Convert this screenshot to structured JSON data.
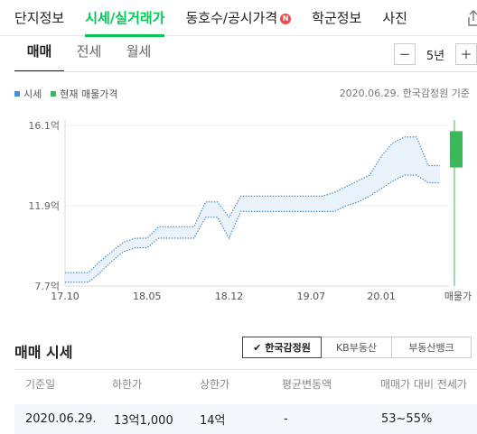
{
  "top_tabs": [
    "단지정보",
    "시세/실거래가",
    "동호수/공시가격",
    "학군정보",
    "사진"
  ],
  "top_tabs_badge": "N",
  "sub_tabs": [
    "매매",
    "전세",
    "월세"
  ],
  "period": {
    "value": "5년",
    "minus": "−",
    "plus": "+"
  },
  "legend": {
    "price": "시세",
    "current": "현재 매물가격"
  },
  "colors": {
    "accent": "#03c75a",
    "price_band": "#4a8fd8",
    "current_listing": "#3cb85a"
  },
  "source_note": "2020.06.29. 한국감정원 기준",
  "chart_data": {
    "type": "area",
    "x_ticks": [
      "17.10",
      "18.05",
      "18.12",
      "19.07",
      "20.01",
      "매물가"
    ],
    "y_ticks": [
      "16.1억",
      "11.9억",
      "7.7억"
    ],
    "y_tick_values": [
      16.1,
      11.9,
      7.7
    ],
    "ylim": [
      7.7,
      16.1
    ],
    "x": [
      "17.10",
      "17.11",
      "17.12",
      "18.01",
      "18.02",
      "18.03",
      "18.04",
      "18.05",
      "18.06",
      "18.07",
      "18.08",
      "18.09",
      "18.10",
      "18.11",
      "18.12",
      "19.01",
      "19.02",
      "19.03",
      "19.04",
      "19.05",
      "19.06",
      "19.07",
      "19.08",
      "19.09",
      "19.10",
      "19.11",
      "19.12",
      "20.01",
      "20.02",
      "20.03",
      "20.04",
      "20.05",
      "20.06"
    ],
    "series": [
      {
        "name": "하한가",
        "values": [
          7.9,
          7.9,
          7.9,
          8.4,
          9.0,
          9.5,
          9.7,
          9.7,
          10.2,
          10.2,
          10.2,
          10.2,
          11.3,
          11.3,
          10.2,
          11.6,
          11.6,
          11.6,
          11.6,
          11.6,
          11.6,
          11.6,
          11.6,
          11.6,
          11.9,
          12.1,
          12.4,
          12.8,
          13.2,
          13.5,
          13.5,
          13.1,
          13.1
        ]
      },
      {
        "name": "상한가",
        "values": [
          8.4,
          8.4,
          8.4,
          9.0,
          9.5,
          10.0,
          10.2,
          10.2,
          10.8,
          10.8,
          10.8,
          10.8,
          12.1,
          12.1,
          11.3,
          12.4,
          12.4,
          12.4,
          12.4,
          12.4,
          12.4,
          12.4,
          12.4,
          12.6,
          12.9,
          13.2,
          13.5,
          14.5,
          15.2,
          15.5,
          15.5,
          14.0,
          14.0
        ]
      }
    ],
    "current_listing": {
      "label": "현재 매물가격",
      "low": 13.9,
      "high": 15.8
    }
  },
  "market": {
    "title": "매매 시세",
    "sources": [
      "한국감정원",
      "KB부동산",
      "부동산뱅크"
    ],
    "columns": [
      "기준일",
      "하한가",
      "상한가",
      "평균변동액",
      "매매가 대비 전세가"
    ],
    "row": [
      "2020.06.29.",
      "13억1,000",
      "14억",
      "-",
      "53~55%"
    ]
  }
}
